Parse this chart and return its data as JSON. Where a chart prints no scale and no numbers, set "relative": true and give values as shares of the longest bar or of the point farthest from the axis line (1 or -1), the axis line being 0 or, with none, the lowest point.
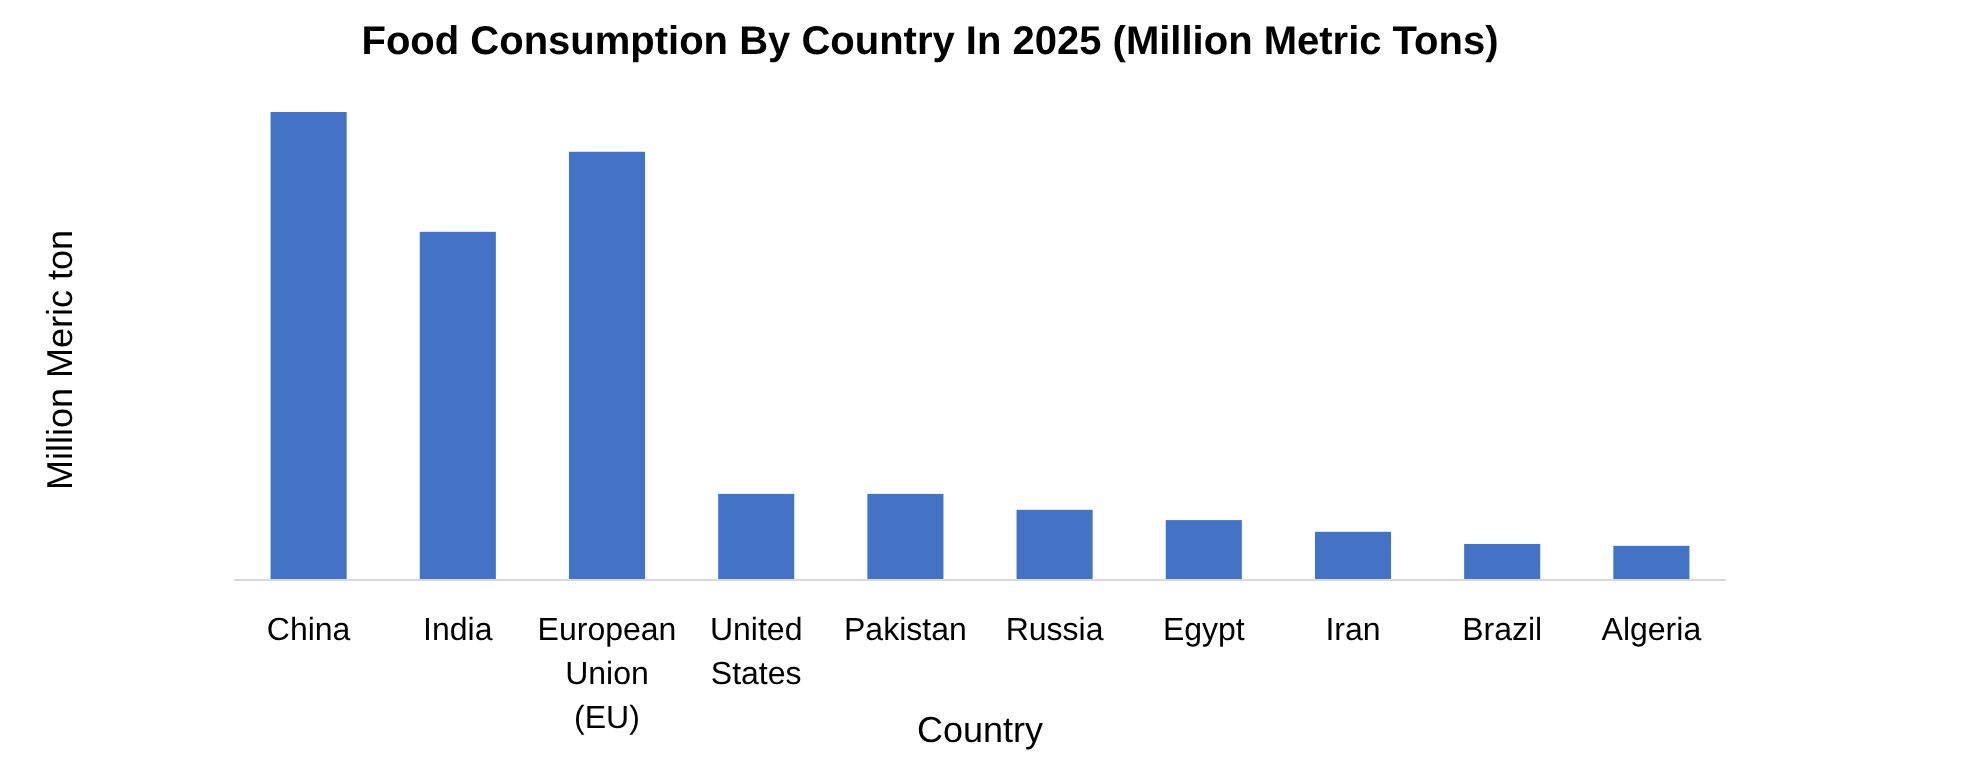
{
  "chart_data": {
    "type": "bar",
    "title": "Food Consumption  By Country In 2025 (Million Metric Tons)",
    "xlabel": "Country",
    "ylabel": "Million Meric ton",
    "relative": true,
    "color": "#4472c4",
    "categories": [
      "China",
      "India",
      "European Union (EU)",
      "United States",
      "Pakistan",
      "Russia",
      "Egypt",
      "Iran",
      "Brazil",
      "Algeria"
    ],
    "values": [
      1,
      0.744,
      0.915,
      0.184,
      0.184,
      0.15,
      0.128,
      0.103,
      0.077,
      0.073
    ]
  }
}
